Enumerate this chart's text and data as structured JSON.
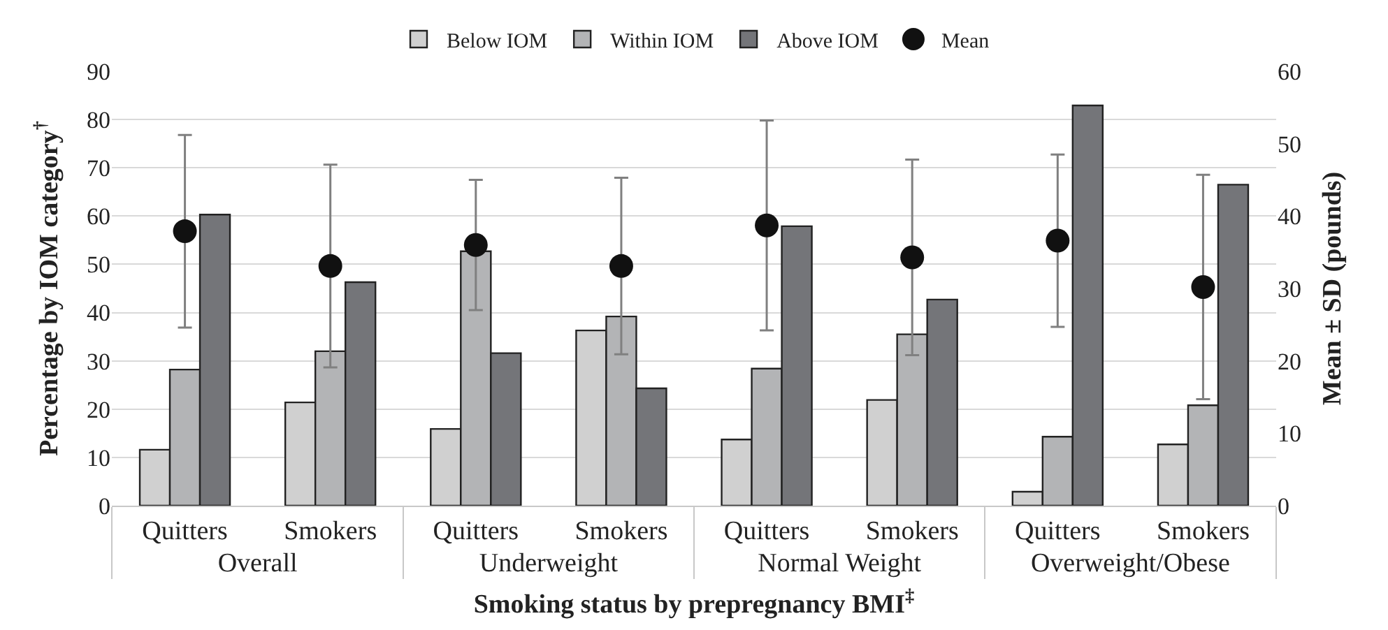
{
  "chart_data": {
    "type": "bar",
    "xlabel": "Smoking status by prepregnancy BMI$^{‡}$",
    "ylabel": "Percentage by IOM category$^{†}$",
    "y2label": "Mean ± SD (pounds)",
    "categories": [
      "Quitters",
      "Smokers",
      "Quitters",
      "Smokers",
      "Quitters",
      "Smokers",
      "Quitters",
      "Smokers"
    ],
    "annotations": [
      "Overall",
      "Underweight",
      "Normal Weight",
      "Overweight/Obese"
    ],
    "series": [
      {
        "name": "Below IOM",
        "color": "#d0d0d0",
        "values": [
          11.6,
          21.4,
          15.9,
          36.3,
          13.7,
          21.9,
          2.9,
          12.7
        ]
      },
      {
        "name": "Within IOM",
        "color": "#b3b4b6",
        "values": [
          28.2,
          32.0,
          52.7,
          39.2,
          28.4,
          35.5,
          14.3,
          20.8
        ]
      },
      {
        "name": "Above IOM",
        "color": "#747579",
        "values": [
          60.3,
          46.3,
          31.6,
          24.3,
          57.9,
          42.7,
          82.9,
          66.5
        ]
      },
      {
        "name": "Mean",
        "type": "scatter",
        "axis": "y2",
        "marker": "circle",
        "color": "#111111",
        "values": [
          37.9,
          33.1,
          36.0,
          33.1,
          38.7,
          34.3,
          36.6,
          30.2
        ],
        "errors": [
          13.3,
          14.0,
          9.0,
          12.2,
          14.5,
          13.5,
          11.9,
          15.5
        ]
      }
    ],
    "ylim": [
      0,
      90
    ],
    "yticks": [
      0,
      10,
      20,
      30,
      40,
      50,
      60,
      70,
      80,
      90
    ],
    "y2lim": [
      0,
      60
    ],
    "y2ticks": [
      0,
      10,
      20,
      30,
      40,
      50,
      60
    ],
    "grid": "y",
    "legend": "top"
  }
}
